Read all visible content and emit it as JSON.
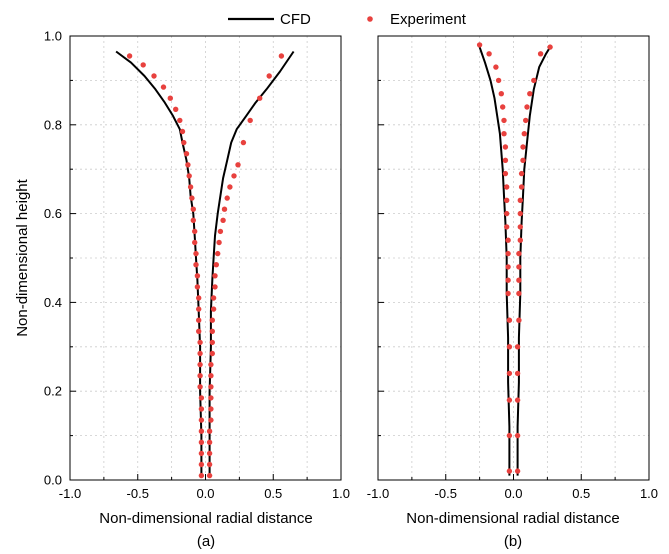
{
  "legend": {
    "cfd_label": "CFD",
    "exp_label": "Experiment"
  },
  "colors": {
    "cfd": "#000000",
    "experiment": "#e8413e",
    "grid": "#cccccc"
  },
  "chart_data": [
    {
      "type": "line",
      "panel": "(a)",
      "xlabel": "Non-dimensional radial distance",
      "ylabel": "Non-dimensional height",
      "xlim": [
        -1.0,
        1.0
      ],
      "ylim": [
        0.0,
        1.0
      ],
      "xticks": [
        "-1.0",
        "-0.5",
        "0.0",
        "0.5",
        "1.0"
      ],
      "yticks": [
        "0.0",
        "0.2",
        "0.4",
        "0.6",
        "0.8",
        "1.0"
      ],
      "grid": true,
      "series": [
        {
          "name": "CFD",
          "kind": "line",
          "x": [
            -0.66,
            -0.55,
            -0.45,
            -0.37,
            -0.3,
            -0.24,
            -0.19,
            -0.17,
            -0.14,
            -0.12,
            -0.11,
            -0.09,
            -0.08,
            -0.07,
            -0.06,
            -0.05,
            -0.04,
            -0.04,
            -0.03,
            -0.03,
            null,
            0.03,
            0.03,
            0.03,
            0.04,
            0.04,
            0.05,
            0.06,
            0.07,
            0.09,
            0.11,
            0.13,
            0.16,
            0.19,
            0.23,
            0.3,
            0.37,
            0.45,
            0.55,
            0.65
          ],
          "y": [
            0.965,
            0.94,
            0.91,
            0.88,
            0.85,
            0.82,
            0.79,
            0.76,
            0.72,
            0.68,
            0.64,
            0.6,
            0.55,
            0.5,
            0.45,
            0.38,
            0.3,
            0.2,
            0.1,
            0.01,
            null,
            0.01,
            0.1,
            0.2,
            0.3,
            0.38,
            0.45,
            0.5,
            0.55,
            0.6,
            0.64,
            0.68,
            0.72,
            0.76,
            0.79,
            0.82,
            0.85,
            0.88,
            0.92,
            0.965
          ]
        },
        {
          "name": "Experiment",
          "kind": "scatter",
          "x": [
            -0.56,
            -0.46,
            -0.38,
            -0.31,
            -0.26,
            -0.22,
            -0.19,
            -0.17,
            -0.16,
            -0.14,
            -0.13,
            -0.12,
            -0.11,
            -0.1,
            -0.09,
            -0.09,
            -0.08,
            -0.08,
            -0.07,
            -0.07,
            -0.06,
            -0.06,
            -0.05,
            -0.05,
            -0.05,
            -0.05,
            -0.04,
            -0.04,
            -0.04,
            -0.04,
            -0.04,
            -0.03,
            -0.03,
            -0.03,
            -0.03,
            -0.03,
            -0.03,
            -0.03,
            -0.03,
            0.03,
            0.03,
            0.03,
            0.03,
            0.03,
            0.04,
            0.04,
            0.04,
            0.04,
            0.04,
            0.04,
            0.05,
            0.05,
            0.05,
            0.05,
            0.06,
            0.06,
            0.07,
            0.07,
            0.08,
            0.09,
            0.1,
            0.11,
            0.13,
            0.14,
            0.16,
            0.18,
            0.21,
            0.24,
            0.28,
            0.33,
            0.4,
            0.47,
            0.56
          ],
          "y": [
            0.955,
            0.935,
            0.91,
            0.885,
            0.86,
            0.835,
            0.81,
            0.785,
            0.76,
            0.735,
            0.71,
            0.685,
            0.66,
            0.635,
            0.61,
            0.585,
            0.56,
            0.535,
            0.51,
            0.485,
            0.46,
            0.435,
            0.41,
            0.385,
            0.36,
            0.335,
            0.31,
            0.285,
            0.26,
            0.235,
            0.21,
            0.185,
            0.16,
            0.135,
            0.11,
            0.085,
            0.06,
            0.035,
            0.01,
            0.01,
            0.035,
            0.06,
            0.085,
            0.11,
            0.135,
            0.16,
            0.185,
            0.21,
            0.235,
            0.26,
            0.285,
            0.31,
            0.335,
            0.36,
            0.385,
            0.41,
            0.435,
            0.46,
            0.485,
            0.51,
            0.535,
            0.56,
            0.585,
            0.61,
            0.635,
            0.66,
            0.685,
            0.71,
            0.76,
            0.81,
            0.86,
            0.91,
            0.955
          ]
        }
      ]
    },
    {
      "type": "line",
      "panel": "(b)",
      "xlabel": "Non-dimensional radial distance",
      "ylabel": "",
      "xlim": [
        -1.0,
        1.0
      ],
      "ylim": [
        0.0,
        1.0
      ],
      "xticks": [
        "-1.0",
        "-0.5",
        "0.0",
        "0.5",
        "1.0"
      ],
      "yticks": [],
      "grid": true,
      "series": [
        {
          "name": "CFD",
          "kind": "line",
          "x": [
            -0.25,
            -0.21,
            -0.17,
            -0.14,
            -0.12,
            -0.1,
            -0.09,
            -0.08,
            -0.07,
            -0.06,
            -0.05,
            -0.05,
            -0.04,
            -0.04,
            -0.03,
            -0.03,
            null,
            0.03,
            0.03,
            0.04,
            0.04,
            0.05,
            0.05,
            0.06,
            0.07,
            0.08,
            0.1,
            0.12,
            0.15,
            0.19,
            0.24,
            0.27
          ],
          "y": [
            0.975,
            0.94,
            0.9,
            0.86,
            0.82,
            0.78,
            0.74,
            0.7,
            0.64,
            0.58,
            0.5,
            0.42,
            0.32,
            0.22,
            0.12,
            0.01,
            null,
            0.01,
            0.12,
            0.22,
            0.32,
            0.42,
            0.5,
            0.58,
            0.64,
            0.7,
            0.76,
            0.82,
            0.88,
            0.93,
            0.96,
            0.975
          ]
        },
        {
          "name": "Experiment",
          "kind": "scatter",
          "x": [
            -0.25,
            -0.18,
            -0.13,
            -0.11,
            -0.09,
            -0.08,
            -0.07,
            -0.07,
            -0.06,
            -0.06,
            -0.06,
            -0.05,
            -0.05,
            -0.05,
            -0.05,
            -0.04,
            -0.04,
            -0.04,
            -0.04,
            -0.04,
            -0.03,
            -0.03,
            -0.03,
            -0.03,
            -0.03,
            -0.03,
            0.03,
            0.03,
            0.03,
            0.03,
            0.03,
            0.04,
            0.04,
            0.04,
            0.04,
            0.04,
            0.05,
            0.05,
            0.05,
            0.05,
            0.06,
            0.06,
            0.07,
            0.07,
            0.08,
            0.09,
            0.1,
            0.12,
            0.15,
            0.2,
            0.27
          ],
          "y": [
            0.98,
            0.96,
            0.93,
            0.9,
            0.87,
            0.84,
            0.81,
            0.78,
            0.75,
            0.72,
            0.69,
            0.66,
            0.63,
            0.6,
            0.57,
            0.54,
            0.51,
            0.48,
            0.45,
            0.42,
            0.36,
            0.3,
            0.24,
            0.18,
            0.1,
            0.02,
            0.02,
            0.1,
            0.18,
            0.24,
            0.3,
            0.36,
            0.42,
            0.45,
            0.48,
            0.51,
            0.54,
            0.57,
            0.6,
            0.63,
            0.66,
            0.69,
            0.72,
            0.75,
            0.78,
            0.81,
            0.84,
            0.87,
            0.9,
            0.96,
            0.975
          ]
        }
      ]
    }
  ]
}
